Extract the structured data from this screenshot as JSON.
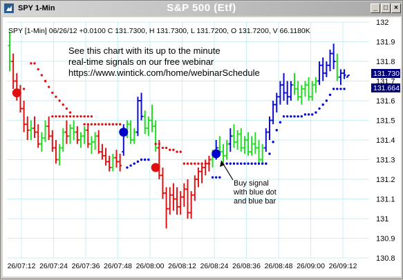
{
  "window": {
    "title": "SPY 1-Min",
    "center_title": "S&P 500 (Etf)",
    "buttons": [
      "_",
      "□",
      "×"
    ]
  },
  "info_line": "SPY [1-Min] 06/26/12  +0.0100 C 131.7300, H 131.7300, L 131.7200, O 131.7200, V 66.1180K",
  "promo": {
    "line1": "See this chart with its up to the minute",
    "line2": "real-time signals on our free webinar",
    "line3": "https://www.wintick.com/home/webinarSchedule"
  },
  "annotation": {
    "line1": "Buy signal",
    "line2": "with blue dot",
    "line3": "and blue bar"
  },
  "price_tags": {
    "last": "131.730",
    "stop": "131.664"
  },
  "colors": {
    "up_bar": "#22dd22",
    "down_bar": "#e01010",
    "buy_bar": "#0a0ad0",
    "red_dots": "#e01010",
    "blue_dots": "#0000cc",
    "grid": "#c8eef2",
    "tag_bg": "#00007a"
  },
  "chart_data": {
    "type": "ohlc",
    "symbol": "SPY",
    "interval": "1-Min",
    "ylim": [
      130.8,
      132.0
    ],
    "yticks": [
      "132",
      "131.9",
      "131.8",
      "131.7",
      "131.6",
      "131.5",
      "131.4",
      "131.3",
      "131.2",
      "131.1",
      "131",
      "130.9",
      "130.8"
    ],
    "ytick_values": [
      132.0,
      131.9,
      131.8,
      131.7,
      131.6,
      131.5,
      131.4,
      131.3,
      131.2,
      131.1,
      131.0,
      130.9,
      130.8
    ],
    "xticks": [
      "26/07:12",
      "26/07:24",
      "26/07:36",
      "26/07:48",
      "26/08:00",
      "26/08:12",
      "26/08:24",
      "26/08:36",
      "26/08:48",
      "26/09:00",
      "26/09:12"
    ],
    "bars": [
      {
        "o": 131.88,
        "h": 131.95,
        "l": 131.75,
        "c": 131.8,
        "s": "u"
      },
      {
        "o": 131.8,
        "h": 131.84,
        "l": 131.66,
        "c": 131.7,
        "s": "d"
      },
      {
        "o": 131.7,
        "h": 131.74,
        "l": 131.6,
        "c": 131.64,
        "s": "d"
      },
      {
        "o": 131.64,
        "h": 131.68,
        "l": 131.54,
        "c": 131.56,
        "s": "d"
      },
      {
        "o": 131.56,
        "h": 131.6,
        "l": 131.44,
        "c": 131.48,
        "s": "d"
      },
      {
        "o": 131.48,
        "h": 131.52,
        "l": 131.4,
        "c": 131.45,
        "s": "d"
      },
      {
        "o": 131.45,
        "h": 131.5,
        "l": 131.4,
        "c": 131.46,
        "s": "u"
      },
      {
        "o": 131.46,
        "h": 131.52,
        "l": 131.41,
        "c": 131.44,
        "s": "d"
      },
      {
        "o": 131.44,
        "h": 131.48,
        "l": 131.36,
        "c": 131.38,
        "s": "d"
      },
      {
        "o": 131.38,
        "h": 131.44,
        "l": 131.34,
        "c": 131.41,
        "s": "u"
      },
      {
        "o": 131.41,
        "h": 131.5,
        "l": 131.39,
        "c": 131.47,
        "s": "u"
      },
      {
        "o": 131.47,
        "h": 131.52,
        "l": 131.4,
        "c": 131.42,
        "s": "d"
      },
      {
        "o": 131.42,
        "h": 131.45,
        "l": 131.34,
        "c": 131.36,
        "s": "d"
      },
      {
        "o": 131.36,
        "h": 131.4,
        "l": 131.28,
        "c": 131.3,
        "s": "d"
      },
      {
        "o": 131.3,
        "h": 131.38,
        "l": 131.27,
        "c": 131.36,
        "s": "u"
      },
      {
        "o": 131.36,
        "h": 131.46,
        "l": 131.34,
        "c": 131.44,
        "s": "u"
      },
      {
        "o": 131.44,
        "h": 131.5,
        "l": 131.38,
        "c": 131.42,
        "s": "d"
      },
      {
        "o": 131.42,
        "h": 131.48,
        "l": 131.38,
        "c": 131.46,
        "s": "u"
      },
      {
        "o": 131.46,
        "h": 131.5,
        "l": 131.4,
        "c": 131.44,
        "s": "u"
      },
      {
        "o": 131.44,
        "h": 131.47,
        "l": 131.38,
        "c": 131.4,
        "s": "d"
      },
      {
        "o": 131.4,
        "h": 131.44,
        "l": 131.36,
        "c": 131.42,
        "s": "u"
      },
      {
        "o": 131.42,
        "h": 131.47,
        "l": 131.38,
        "c": 131.45,
        "s": "u"
      },
      {
        "o": 131.45,
        "h": 131.48,
        "l": 131.36,
        "c": 131.38,
        "s": "d"
      },
      {
        "o": 131.38,
        "h": 131.42,
        "l": 131.33,
        "c": 131.39,
        "s": "u"
      },
      {
        "o": 131.39,
        "h": 131.44,
        "l": 131.35,
        "c": 131.42,
        "s": "u"
      },
      {
        "o": 131.42,
        "h": 131.45,
        "l": 131.33,
        "c": 131.34,
        "s": "d"
      },
      {
        "o": 131.34,
        "h": 131.38,
        "l": 131.3,
        "c": 131.32,
        "s": "d"
      },
      {
        "o": 131.32,
        "h": 131.36,
        "l": 131.27,
        "c": 131.29,
        "s": "d"
      },
      {
        "o": 131.29,
        "h": 131.32,
        "l": 131.24,
        "c": 131.26,
        "s": "d"
      },
      {
        "o": 131.26,
        "h": 131.33,
        "l": 131.24,
        "c": 131.31,
        "s": "u"
      },
      {
        "o": 131.31,
        "h": 131.35,
        "l": 131.26,
        "c": 131.29,
        "s": "d"
      },
      {
        "o": 131.29,
        "h": 131.33,
        "l": 131.24,
        "c": 131.27,
        "s": "d"
      },
      {
        "o": 131.34,
        "h": 131.48,
        "l": 131.32,
        "c": 131.45,
        "s": "b"
      },
      {
        "o": 131.45,
        "h": 131.5,
        "l": 131.41,
        "c": 131.48,
        "s": "u"
      },
      {
        "o": 131.48,
        "h": 131.5,
        "l": 131.38,
        "c": 131.4,
        "s": "u"
      },
      {
        "o": 131.4,
        "h": 131.46,
        "l": 131.38,
        "c": 131.44,
        "s": "u"
      },
      {
        "o": 131.44,
        "h": 131.62,
        "l": 131.42,
        "c": 131.6,
        "s": "b"
      },
      {
        "o": 131.6,
        "h": 131.64,
        "l": 131.5,
        "c": 131.52,
        "s": "b"
      },
      {
        "o": 131.52,
        "h": 131.55,
        "l": 131.43,
        "c": 131.46,
        "s": "u"
      },
      {
        "o": 131.46,
        "h": 131.52,
        "l": 131.42,
        "c": 131.5,
        "s": "u"
      },
      {
        "o": 131.5,
        "h": 131.58,
        "l": 131.44,
        "c": 131.47,
        "s": "u"
      },
      {
        "o": 131.47,
        "h": 131.5,
        "l": 131.34,
        "c": 131.36,
        "s": "u"
      },
      {
        "o": 131.36,
        "h": 131.4,
        "l": 131.2,
        "c": 131.22,
        "s": "d"
      },
      {
        "o": 131.22,
        "h": 131.26,
        "l": 131.1,
        "c": 131.13,
        "s": "d"
      },
      {
        "o": 131.13,
        "h": 131.16,
        "l": 130.95,
        "c": 131.05,
        "s": "d"
      },
      {
        "o": 131.05,
        "h": 131.16,
        "l": 131.02,
        "c": 131.12,
        "s": "d"
      },
      {
        "o": 131.12,
        "h": 131.18,
        "l": 131.04,
        "c": 131.1,
        "s": "d"
      },
      {
        "o": 131.1,
        "h": 131.16,
        "l": 131.02,
        "c": 131.06,
        "s": "d"
      },
      {
        "o": 131.06,
        "h": 131.14,
        "l": 131.02,
        "c": 131.11,
        "s": "d"
      },
      {
        "o": 131.11,
        "h": 131.18,
        "l": 131.06,
        "c": 131.15,
        "s": "d"
      },
      {
        "o": 131.15,
        "h": 131.2,
        "l": 131.0,
        "c": 131.03,
        "s": "d"
      },
      {
        "o": 131.03,
        "h": 131.14,
        "l": 131.0,
        "c": 131.12,
        "s": "d"
      },
      {
        "o": 131.12,
        "h": 131.22,
        "l": 131.09,
        "c": 131.2,
        "s": "d"
      },
      {
        "o": 131.2,
        "h": 131.26,
        "l": 131.16,
        "c": 131.24,
        "s": "d"
      },
      {
        "o": 131.24,
        "h": 131.28,
        "l": 131.18,
        "c": 131.26,
        "s": "d"
      },
      {
        "o": 131.26,
        "h": 131.3,
        "l": 131.22,
        "c": 131.28,
        "s": "d"
      },
      {
        "o": 131.28,
        "h": 131.32,
        "l": 131.24,
        "c": 131.3,
        "s": "d"
      },
      {
        "o": 131.3,
        "h": 131.35,
        "l": 131.26,
        "c": 131.33,
        "s": "u"
      },
      {
        "o": 131.33,
        "h": 131.4,
        "l": 131.3,
        "c": 131.36,
        "s": "b"
      },
      {
        "o": 131.36,
        "h": 131.42,
        "l": 131.32,
        "c": 131.34,
        "s": "u"
      },
      {
        "o": 131.34,
        "h": 131.38,
        "l": 131.28,
        "c": 131.32,
        "s": "u"
      },
      {
        "o": 131.32,
        "h": 131.4,
        "l": 131.3,
        "c": 131.38,
        "s": "u"
      },
      {
        "o": 131.38,
        "h": 131.46,
        "l": 131.34,
        "c": 131.42,
        "s": "b"
      },
      {
        "o": 131.42,
        "h": 131.48,
        "l": 131.36,
        "c": 131.39,
        "s": "u"
      },
      {
        "o": 131.39,
        "h": 131.45,
        "l": 131.35,
        "c": 131.43,
        "s": "u"
      },
      {
        "o": 131.43,
        "h": 131.46,
        "l": 131.34,
        "c": 131.36,
        "s": "u"
      },
      {
        "o": 131.36,
        "h": 131.42,
        "l": 131.33,
        "c": 131.4,
        "s": "u"
      },
      {
        "o": 131.4,
        "h": 131.44,
        "l": 131.32,
        "c": 131.34,
        "s": "u"
      },
      {
        "o": 131.34,
        "h": 131.42,
        "l": 131.32,
        "c": 131.38,
        "s": "u"
      },
      {
        "o": 131.38,
        "h": 131.44,
        "l": 131.33,
        "c": 131.36,
        "s": "u"
      },
      {
        "o": 131.36,
        "h": 131.4,
        "l": 131.28,
        "c": 131.3,
        "s": "u"
      },
      {
        "o": 131.3,
        "h": 131.38,
        "l": 131.28,
        "c": 131.36,
        "s": "u"
      },
      {
        "o": 131.36,
        "h": 131.46,
        "l": 131.34,
        "c": 131.44,
        "s": "b"
      },
      {
        "o": 131.44,
        "h": 131.52,
        "l": 131.4,
        "c": 131.5,
        "s": "b"
      },
      {
        "o": 131.5,
        "h": 131.6,
        "l": 131.48,
        "c": 131.58,
        "s": "b"
      },
      {
        "o": 131.58,
        "h": 131.64,
        "l": 131.54,
        "c": 131.62,
        "s": "b"
      },
      {
        "o": 131.62,
        "h": 131.7,
        "l": 131.58,
        "c": 131.68,
        "s": "b"
      },
      {
        "o": 131.68,
        "h": 131.74,
        "l": 131.6,
        "c": 131.64,
        "s": "b"
      },
      {
        "o": 131.64,
        "h": 131.7,
        "l": 131.58,
        "c": 131.62,
        "s": "b"
      },
      {
        "o": 131.62,
        "h": 131.7,
        "l": 131.6,
        "c": 131.68,
        "s": "b"
      },
      {
        "o": 131.68,
        "h": 131.74,
        "l": 131.63,
        "c": 131.66,
        "s": "u"
      },
      {
        "o": 131.66,
        "h": 131.7,
        "l": 131.6,
        "c": 131.62,
        "s": "u"
      },
      {
        "o": 131.62,
        "h": 131.68,
        "l": 131.58,
        "c": 131.66,
        "s": "u"
      },
      {
        "o": 131.66,
        "h": 131.7,
        "l": 131.62,
        "c": 131.68,
        "s": "u"
      },
      {
        "o": 131.68,
        "h": 131.72,
        "l": 131.6,
        "c": 131.62,
        "s": "u"
      },
      {
        "o": 131.62,
        "h": 131.7,
        "l": 131.6,
        "c": 131.68,
        "s": "u"
      },
      {
        "o": 131.68,
        "h": 131.72,
        "l": 131.64,
        "c": 131.7,
        "s": "u"
      },
      {
        "o": 131.7,
        "h": 131.8,
        "l": 131.68,
        "c": 131.78,
        "s": "b"
      },
      {
        "o": 131.78,
        "h": 131.82,
        "l": 131.7,
        "c": 131.74,
        "s": "b"
      },
      {
        "o": 131.74,
        "h": 131.8,
        "l": 131.72,
        "c": 131.78,
        "s": "b"
      },
      {
        "o": 131.78,
        "h": 131.86,
        "l": 131.75,
        "c": 131.84,
        "s": "b"
      },
      {
        "o": 131.84,
        "h": 131.89,
        "l": 131.76,
        "c": 131.8,
        "s": "b"
      },
      {
        "o": 131.8,
        "h": 131.84,
        "l": 131.7,
        "c": 131.72,
        "s": "u"
      },
      {
        "o": 131.72,
        "h": 131.76,
        "l": 131.68,
        "c": 131.74,
        "s": "b"
      },
      {
        "o": 131.74,
        "h": 131.76,
        "l": 131.71,
        "c": 131.73,
        "s": "b"
      },
      {
        "o": 131.72,
        "h": 131.73,
        "l": 131.72,
        "c": 131.73,
        "s": "b"
      }
    ],
    "red_dots": [
      {
        "x": 2,
        "y": 131.64
      },
      {
        "x": 4,
        "y": 131.66
      },
      {
        "x": 6,
        "y": 131.79
      },
      {
        "x": 7,
        "y": 131.79
      },
      {
        "x": 8,
        "y": 131.76
      },
      {
        "x": 9,
        "y": 131.73
      },
      {
        "x": 10,
        "y": 131.7
      },
      {
        "x": 11,
        "y": 131.67
      },
      {
        "x": 12,
        "y": 131.64
      },
      {
        "x": 13,
        "y": 131.62
      },
      {
        "x": 14,
        "y": 131.6
      },
      {
        "x": 15,
        "y": 131.58
      },
      {
        "x": 16,
        "y": 131.56
      },
      {
        "x": 17,
        "y": 131.54
      },
      {
        "x": 12,
        "y": 131.52
      },
      {
        "x": 13,
        "y": 131.52
      },
      {
        "x": 14,
        "y": 131.52
      },
      {
        "x": 15,
        "y": 131.52
      },
      {
        "x": 16,
        "y": 131.52
      },
      {
        "x": 17,
        "y": 131.52
      },
      {
        "x": 18,
        "y": 131.52
      },
      {
        "x": 19,
        "y": 131.52
      },
      {
        "x": 20,
        "y": 131.52
      },
      {
        "x": 21,
        "y": 131.52
      },
      {
        "x": 22,
        "y": 131.52
      },
      {
        "x": 23,
        "y": 131.52
      },
      {
        "x": 21,
        "y": 131.48
      },
      {
        "x": 22,
        "y": 131.48
      },
      {
        "x": 23,
        "y": 131.48
      },
      {
        "x": 24,
        "y": 131.48
      },
      {
        "x": 25,
        "y": 131.48
      },
      {
        "x": 26,
        "y": 131.48
      },
      {
        "x": 27,
        "y": 131.48
      },
      {
        "x": 28,
        "y": 131.48
      },
      {
        "x": 29,
        "y": 131.48
      },
      {
        "x": 30,
        "y": 131.48
      },
      {
        "x": 31,
        "y": 131.48
      },
      {
        "x": 41,
        "y": 131.38
      },
      {
        "x": 42,
        "y": 131.38
      },
      {
        "x": 43,
        "y": 131.36
      },
      {
        "x": 44,
        "y": 131.36
      },
      {
        "x": 45,
        "y": 131.35
      },
      {
        "x": 46,
        "y": 131.35
      },
      {
        "x": 47,
        "y": 131.34
      },
      {
        "x": 48,
        "y": 131.34
      },
      {
        "x": 49,
        "y": 131.28
      },
      {
        "x": 50,
        "y": 131.28
      },
      {
        "x": 51,
        "y": 131.28
      },
      {
        "x": 52,
        "y": 131.28
      },
      {
        "x": 53,
        "y": 131.28
      },
      {
        "x": 54,
        "y": 131.28
      },
      {
        "x": 55,
        "y": 131.28
      },
      {
        "x": 56,
        "y": 131.28
      }
    ],
    "blue_dots": [
      {
        "x": 33,
        "y": 131.26
      },
      {
        "x": 34,
        "y": 131.27
      },
      {
        "x": 35,
        "y": 131.28
      },
      {
        "x": 36,
        "y": 131.29
      },
      {
        "x": 37,
        "y": 131.3
      },
      {
        "x": 38,
        "y": 131.3
      },
      {
        "x": 39,
        "y": 131.3
      },
      {
        "x": 57,
        "y": 131.21
      },
      {
        "x": 58,
        "y": 131.21
      },
      {
        "x": 59,
        "y": 131.21
      },
      {
        "x": 61,
        "y": 131.28
      },
      {
        "x": 62,
        "y": 131.28
      },
      {
        "x": 63,
        "y": 131.28
      },
      {
        "x": 64,
        "y": 131.28
      },
      {
        "x": 65,
        "y": 131.28
      },
      {
        "x": 66,
        "y": 131.28
      },
      {
        "x": 67,
        "y": 131.28
      },
      {
        "x": 68,
        "y": 131.28
      },
      {
        "x": 69,
        "y": 131.28
      },
      {
        "x": 70,
        "y": 131.28
      },
      {
        "x": 71,
        "y": 131.28
      },
      {
        "x": 72,
        "y": 131.28
      },
      {
        "x": 73,
        "y": 131.33
      },
      {
        "x": 74,
        "y": 131.39
      },
      {
        "x": 75,
        "y": 131.45
      },
      {
        "x": 76,
        "y": 131.49
      },
      {
        "x": 77,
        "y": 131.52
      },
      {
        "x": 78,
        "y": 131.52
      },
      {
        "x": 79,
        "y": 131.52
      },
      {
        "x": 80,
        "y": 131.52
      },
      {
        "x": 81,
        "y": 131.52
      },
      {
        "x": 82,
        "y": 131.52
      },
      {
        "x": 83,
        "y": 131.53
      },
      {
        "x": 84,
        "y": 131.53
      },
      {
        "x": 85,
        "y": 131.53
      },
      {
        "x": 86,
        "y": 131.54
      },
      {
        "x": 87,
        "y": 131.56
      },
      {
        "x": 88,
        "y": 131.58
      },
      {
        "x": 89,
        "y": 131.6
      },
      {
        "x": 90,
        "y": 131.63
      },
      {
        "x": 91,
        "y": 131.66
      },
      {
        "x": 92,
        "y": 131.66
      },
      {
        "x": 93,
        "y": 131.66
      },
      {
        "x": 94,
        "y": 131.66
      }
    ],
    "signals": [
      {
        "x": 2,
        "y": 131.64,
        "kind": "sell"
      },
      {
        "x": 32,
        "y": 131.44,
        "kind": "buy"
      },
      {
        "x": 41,
        "y": 131.26,
        "kind": "sell"
      },
      {
        "x": 58,
        "y": 131.33,
        "kind": "buy"
      }
    ]
  }
}
